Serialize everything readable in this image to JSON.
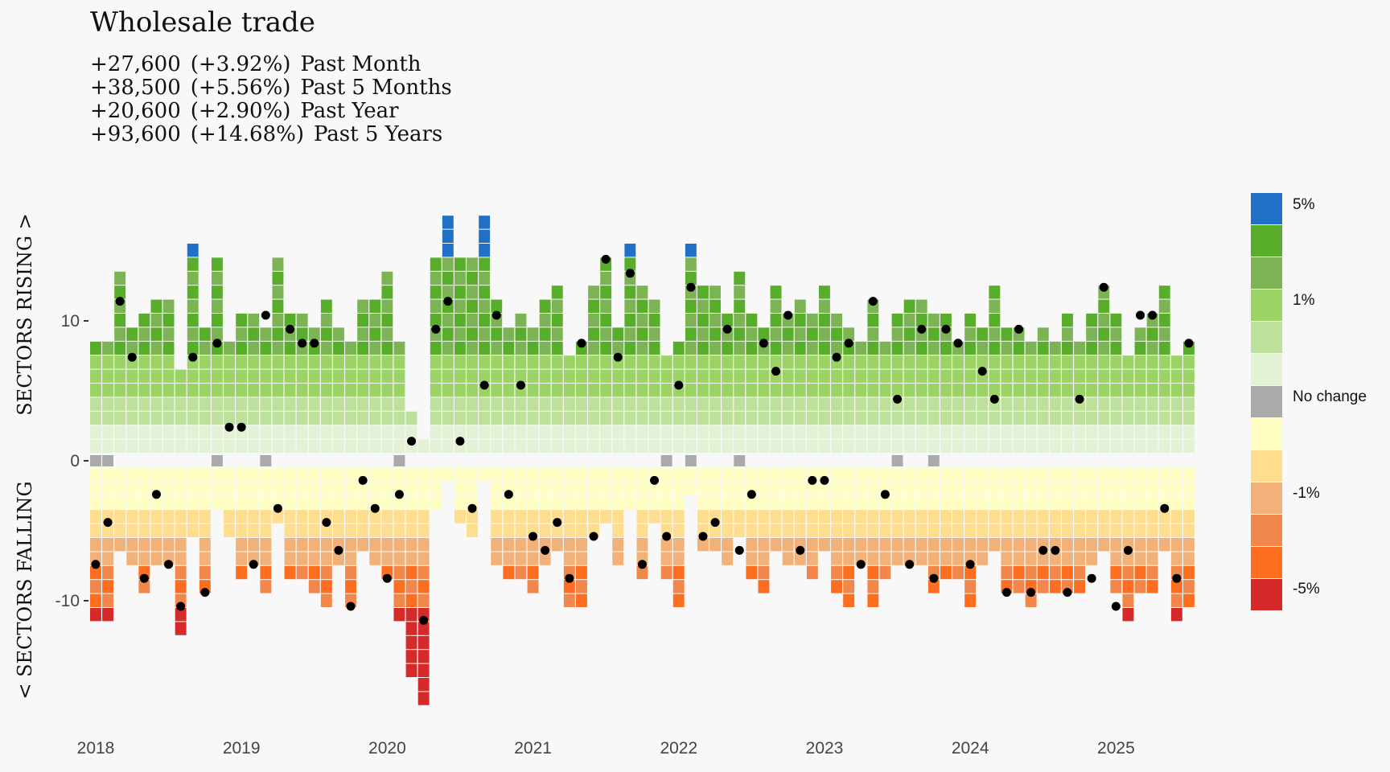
{
  "title": "Wholesale trade",
  "stats": [
    {
      "change": "+27,600",
      "pct": "(+3.92%)",
      "period": "Past Month"
    },
    {
      "change": "+38,500",
      "pct": "(+5.56%)",
      "period": "Past 5 Months"
    },
    {
      "change": "+20,600",
      "pct": "(+2.90%)",
      "period": "Past Year"
    },
    {
      "change": "+93,600",
      "pct": "(+14.68%)",
      "period": "Past 5 Years"
    }
  ],
  "chart_data": {
    "type": "heatmap",
    "subtype": "stacked-sector-diffusion",
    "title": "Wholesale trade",
    "ylabel_top": "SECTORS RISING >",
    "ylabel_bottom": "< SECTORS FALLING",
    "ylim": [
      -18,
      18
    ],
    "yticks": [
      {
        "v": 10,
        "label": "10"
      },
      {
        "v": 0,
        "label": "0"
      },
      {
        "v": -10,
        "label": "-10"
      }
    ],
    "xticks": [
      {
        "i": 0,
        "label": "2018"
      },
      {
        "i": 12,
        "label": "2019"
      },
      {
        "i": 24,
        "label": "2020"
      },
      {
        "i": 36,
        "label": "2021"
      },
      {
        "i": 48,
        "label": "2022"
      },
      {
        "i": 60,
        "label": "2023"
      },
      {
        "i": 72,
        "label": "2024"
      },
      {
        "i": 84,
        "label": "2025"
      }
    ],
    "start": "2018-01",
    "legend": [
      {
        "label": "5%",
        "color": "#2070c8"
      },
      {
        "label": "",
        "color": "#58ad2a"
      },
      {
        "label": "",
        "color": "#7cb354"
      },
      {
        "label": "1%",
        "color": "#9cd365"
      },
      {
        "label": "",
        "color": "#bde09b"
      },
      {
        "label": "",
        "color": "#e3f1d5"
      },
      {
        "label": "No change",
        "color": "#aaaaaa"
      },
      {
        "label": "",
        "color": "#ffffc4"
      },
      {
        "label": "",
        "color": "#fedd8e"
      },
      {
        "label": "-1%",
        "color": "#f2b178"
      },
      {
        "label": "",
        "color": "#f2874c"
      },
      {
        "label": "",
        "color": "#fd6e20"
      },
      {
        "label": "-5%",
        "color": "#d6292a"
      }
    ],
    "months": [
      {
        "up": 8,
        "nc": 1,
        "down": 11,
        "net": -7
      },
      {
        "up": 8,
        "nc": 1,
        "down": 11,
        "net": -4
      },
      {
        "up": 13,
        "nc": 0,
        "down": 6,
        "net": 11
      },
      {
        "up": 9,
        "nc": 0,
        "down": 7,
        "net": 7
      },
      {
        "up": 10,
        "nc": 0,
        "down": 9,
        "net": -8
      },
      {
        "up": 11,
        "nc": 0,
        "down": 7,
        "net": -2
      },
      {
        "up": 11,
        "nc": 0,
        "down": 7,
        "net": -7
      },
      {
        "up": 6,
        "nc": 0,
        "down": 12,
        "net": -10
      },
      {
        "up": 15,
        "nc": 0,
        "down": 5,
        "net": 7
      },
      {
        "up": 9,
        "nc": 0,
        "down": 9,
        "net": -9
      },
      {
        "up": 14,
        "nc": 1,
        "down": 3,
        "net": 8
      },
      {
        "up": 8,
        "nc": 0,
        "down": 5,
        "net": 2
      },
      {
        "up": 10,
        "nc": 0,
        "down": 8,
        "net": 2
      },
      {
        "up": 10,
        "nc": 0,
        "down": 7,
        "net": -7
      },
      {
        "up": 9,
        "nc": 1,
        "down": 9,
        "net": 10
      },
      {
        "up": 14,
        "nc": 0,
        "down": 4,
        "net": -3
      },
      {
        "up": 10,
        "nc": 0,
        "down": 8,
        "net": 9
      },
      {
        "up": 10,
        "nc": 0,
        "down": 8,
        "net": 8
      },
      {
        "up": 9,
        "nc": 0,
        "down": 9,
        "net": 8
      },
      {
        "up": 11,
        "nc": 0,
        "down": 10,
        "net": -4
      },
      {
        "up": 9,
        "nc": 0,
        "down": 7,
        "net": -6
      },
      {
        "up": 8,
        "nc": 0,
        "down": 10,
        "net": -10
      },
      {
        "up": 11,
        "nc": 0,
        "down": 6,
        "net": -1
      },
      {
        "up": 11,
        "nc": 0,
        "down": 7,
        "net": -3
      },
      {
        "up": 13,
        "nc": 0,
        "down": 8,
        "net": -8
      },
      {
        "up": 8,
        "nc": 1,
        "down": 11,
        "net": -2
      },
      {
        "up": 3,
        "nc": 0,
        "down": 15,
        "net": 1
      },
      {
        "up": 1,
        "nc": 0,
        "down": 17,
        "net": -11
      },
      {
        "up": 14,
        "nc": 0,
        "down": 3,
        "net": 9
      },
      {
        "up": 17,
        "nc": 0,
        "down": 1,
        "net": 11
      },
      {
        "up": 14,
        "nc": 0,
        "down": 4,
        "net": 1
      },
      {
        "up": 14,
        "nc": 0,
        "down": 5,
        "net": -3
      },
      {
        "up": 17,
        "nc": 0,
        "down": 1,
        "net": 5
      },
      {
        "up": 11,
        "nc": 0,
        "down": 7,
        "net": 10
      },
      {
        "up": 9,
        "nc": 0,
        "down": 8,
        "net": -2
      },
      {
        "up": 10,
        "nc": 0,
        "down": 8,
        "net": 5
      },
      {
        "up": 9,
        "nc": 0,
        "down": 9,
        "net": -5
      },
      {
        "up": 11,
        "nc": 0,
        "down": 7,
        "net": -6
      },
      {
        "up": 12,
        "nc": 0,
        "down": 6,
        "net": -4
      },
      {
        "up": 7,
        "nc": 0,
        "down": 10,
        "net": -8
      },
      {
        "up": 8,
        "nc": 0,
        "down": 10,
        "net": 8
      },
      {
        "up": 12,
        "nc": 0,
        "down": 5,
        "net": -5
      },
      {
        "up": 14,
        "nc": 0,
        "down": 4,
        "net": 14
      },
      {
        "up": 9,
        "nc": 0,
        "down": 7,
        "net": 7
      },
      {
        "up": 15,
        "nc": 0,
        "down": 3,
        "net": 13
      },
      {
        "up": 12,
        "nc": 0,
        "down": 8,
        "net": -7
      },
      {
        "up": 11,
        "nc": 0,
        "down": 4,
        "net": -1
      },
      {
        "up": 7,
        "nc": 1,
        "down": 8,
        "net": -5
      },
      {
        "up": 8,
        "nc": 0,
        "down": 10,
        "net": 5
      },
      {
        "up": 15,
        "nc": 1,
        "down": 2,
        "net": 12
      },
      {
        "up": 12,
        "nc": 0,
        "down": 6,
        "net": -5
      },
      {
        "up": 12,
        "nc": 0,
        "down": 6,
        "net": -4
      },
      {
        "up": 10,
        "nc": 0,
        "down": 7,
        "net": 9
      },
      {
        "up": 13,
        "nc": 1,
        "down": 5,
        "net": -6
      },
      {
        "up": 10,
        "nc": 0,
        "down": 8,
        "net": -2
      },
      {
        "up": 9,
        "nc": 0,
        "down": 9,
        "net": 8
      },
      {
        "up": 12,
        "nc": 0,
        "down": 6,
        "net": 6
      },
      {
        "up": 10,
        "nc": 0,
        "down": 7,
        "net": 10
      },
      {
        "up": 11,
        "nc": 0,
        "down": 7,
        "net": -6
      },
      {
        "up": 10,
        "nc": 0,
        "down": 8,
        "net": -1
      },
      {
        "up": 12,
        "nc": 0,
        "down": 6,
        "net": -1
      },
      {
        "up": 10,
        "nc": 0,
        "down": 9,
        "net": 7
      },
      {
        "up": 9,
        "nc": 0,
        "down": 10,
        "net": 8
      },
      {
        "up": 8,
        "nc": 0,
        "down": 7,
        "net": -7
      },
      {
        "up": 11,
        "nc": 0,
        "down": 10,
        "net": 11
      },
      {
        "up": 8,
        "nc": 0,
        "down": 8,
        "net": -2
      },
      {
        "up": 10,
        "nc": 1,
        "down": 7,
        "net": 4
      },
      {
        "up": 11,
        "nc": 0,
        "down": 7,
        "net": -7
      },
      {
        "up": 11,
        "nc": 0,
        "down": 7,
        "net": 9
      },
      {
        "up": 10,
        "nc": 1,
        "down": 9,
        "net": -8
      },
      {
        "up": 10,
        "nc": 0,
        "down": 8,
        "net": 9
      },
      {
        "up": 8,
        "nc": 0,
        "down": 8,
        "net": 8
      },
      {
        "up": 10,
        "nc": 0,
        "down": 10,
        "net": -7
      },
      {
        "up": 9,
        "nc": 0,
        "down": 7,
        "net": 6
      },
      {
        "up": 12,
        "nc": 0,
        "down": 6,
        "net": 4
      },
      {
        "up": 9,
        "nc": 0,
        "down": 9,
        "net": -9
      },
      {
        "up": 9,
        "nc": 0,
        "down": 9,
        "net": 9
      },
      {
        "up": 8,
        "nc": 0,
        "down": 10,
        "net": -9
      },
      {
        "up": 9,
        "nc": 0,
        "down": 9,
        "net": -6
      },
      {
        "up": 8,
        "nc": 0,
        "down": 9,
        "net": -6
      },
      {
        "up": 10,
        "nc": 0,
        "down": 9,
        "net": -9
      },
      {
        "up": 8,
        "nc": 0,
        "down": 9,
        "net": 4
      },
      {
        "up": 10,
        "nc": 0,
        "down": 7,
        "net": -8
      },
      {
        "up": 12,
        "nc": 0,
        "down": 6,
        "net": 12
      },
      {
        "up": 10,
        "nc": 0,
        "down": 9,
        "net": -10
      },
      {
        "up": 7,
        "nc": 0,
        "down": 11,
        "net": -6
      },
      {
        "up": 9,
        "nc": 0,
        "down": 9,
        "net": 10
      },
      {
        "up": 10,
        "nc": 0,
        "down": 9,
        "net": 10
      },
      {
        "up": 12,
        "nc": 0,
        "down": 6,
        "net": -3
      },
      {
        "up": 7,
        "nc": 0,
        "down": 11,
        "net": -8
      },
      {
        "up": 8,
        "nc": 0,
        "down": 10,
        "net": 8
      }
    ]
  }
}
